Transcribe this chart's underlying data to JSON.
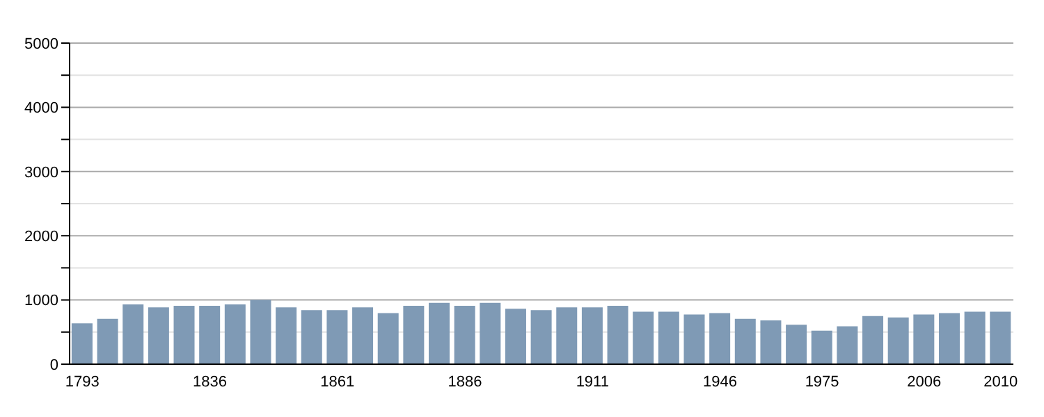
{
  "chart_data": {
    "type": "bar",
    "categories": [
      "1793",
      null,
      null,
      null,
      null,
      "1836",
      null,
      null,
      null,
      null,
      "1861",
      null,
      null,
      null,
      null,
      "1886",
      null,
      null,
      null,
      null,
      "1911",
      null,
      null,
      null,
      null,
      "1946",
      null,
      null,
      null,
      "1975",
      null,
      null,
      null,
      "2006",
      null,
      null,
      "2010"
    ],
    "values": [
      636,
      705,
      932,
      886,
      909,
      909,
      932,
      1000,
      886,
      841,
      841,
      886,
      795,
      909,
      955,
      909,
      955,
      864,
      841,
      886,
      886,
      909,
      818,
      818,
      773,
      795,
      705,
      682,
      614,
      523,
      591,
      750,
      727,
      773,
      795,
      818,
      818
    ],
    "color": "#7f9ab5",
    "ylim": [
      0,
      5000
    ],
    "yticks": [
      0,
      {
        "value": 500,
        "label": null
      },
      1000,
      {
        "value": 1500,
        "label": null
      },
      2000,
      {
        "value": 2500,
        "label": null
      },
      3000,
      {
        "value": 3500,
        "label": null
      },
      4000,
      {
        "value": 4500,
        "label": null
      },
      5000
    ],
    "grid": "y"
  }
}
